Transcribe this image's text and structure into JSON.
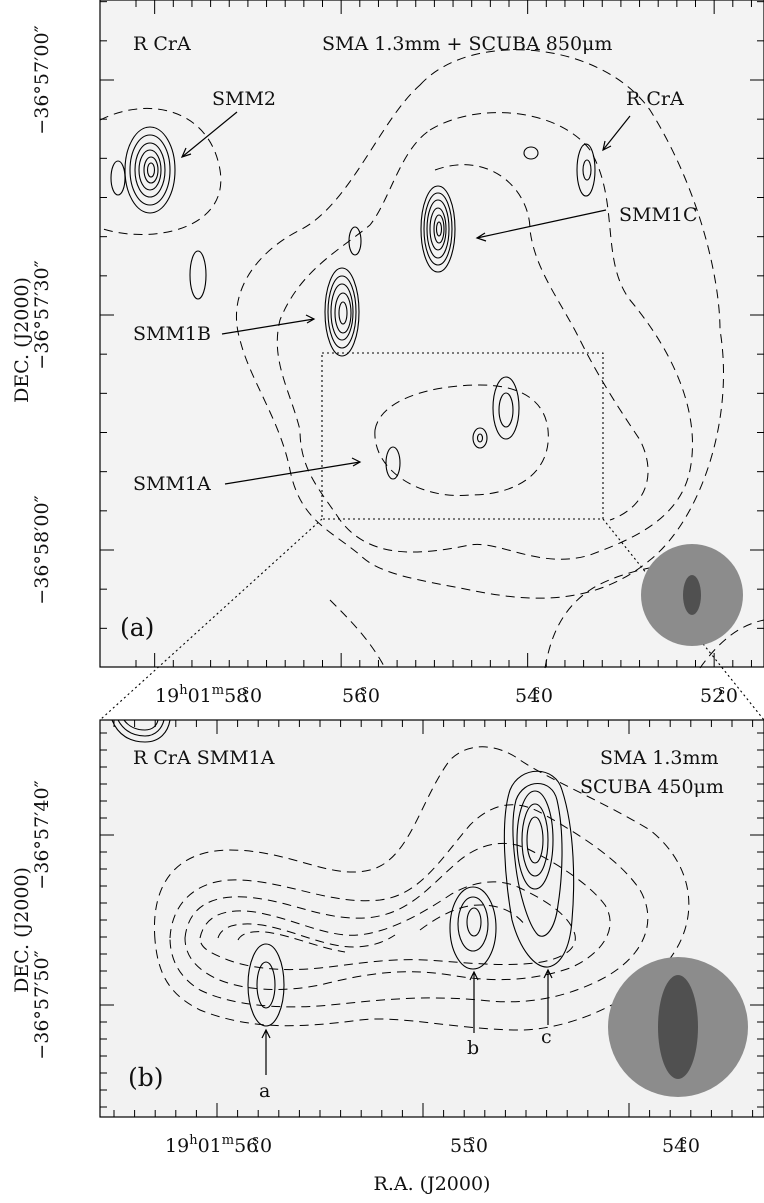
{
  "panel_a": {
    "top_left_label": "R CrA",
    "top_right_label": "SMA 1.3mm + SCUBA 850μm",
    "panel_label": "(a)",
    "y_axis_title": "DEC. (J2000)",
    "y_ticks": [
      "−36°57′00″",
      "−36°57′30″",
      "−36°58′00″"
    ],
    "x_ticks": [
      "19h01m58s.0",
      "56s.0",
      "54s.0",
      "52s.0"
    ],
    "x_tick_parts": [
      {
        "h": "19",
        "hs": "h",
        "m": "01",
        "ms": "m",
        "s": "58",
        "ss": "s",
        "frac": ".0"
      },
      {
        "s": "56",
        "ss": "s",
        "frac": ".0"
      },
      {
        "s": "54",
        "ss": "s",
        "frac": ".0"
      },
      {
        "s": "52",
        "ss": "s",
        "frac": ".0"
      }
    ],
    "sources": [
      {
        "name": "SMM2"
      },
      {
        "name": "R CrA"
      },
      {
        "name": "SMM1C"
      },
      {
        "name": "SMM1B"
      },
      {
        "name": "SMM1A"
      }
    ]
  },
  "panel_b": {
    "top_left_label": "R CrA SMM1A",
    "top_right_label_1": "SMA 1.3mm",
    "top_right_label_2": "SCUBA 450μm",
    "panel_label": "(b)",
    "y_axis_title": "DEC. (J2000)",
    "y_ticks": [
      "−36°57′40″",
      "−36°57′50″"
    ],
    "x_ticks": [
      "19h01m56s.0",
      "55s.0",
      "54s.0"
    ],
    "x_axis_title": "R.A. (J2000)",
    "sources": [
      {
        "name": "a"
      },
      {
        "name": "b"
      },
      {
        "name": "c"
      }
    ]
  },
  "colors": {
    "background_map": "#f2f2f2",
    "beam_outer": "#8c8c8c",
    "beam_inner": "#505050"
  }
}
